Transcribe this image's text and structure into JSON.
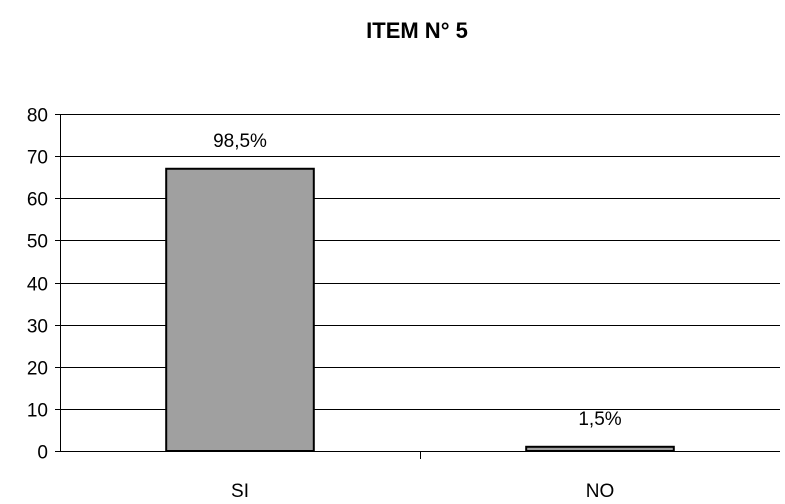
{
  "chart_data": {
    "type": "bar",
    "title": "ITEM N° 5",
    "xlabel": "",
    "ylabel": "",
    "categories": [
      "SI",
      "NO"
    ],
    "values": [
      67,
      1
    ],
    "data_labels": [
      "98,5%",
      "1,5%"
    ],
    "ylim": [
      0,
      80
    ],
    "yticks": [
      0,
      10,
      20,
      30,
      40,
      50,
      60,
      70,
      80
    ],
    "grid": true,
    "legend": "none",
    "bar_color": "#a0a0a0"
  }
}
